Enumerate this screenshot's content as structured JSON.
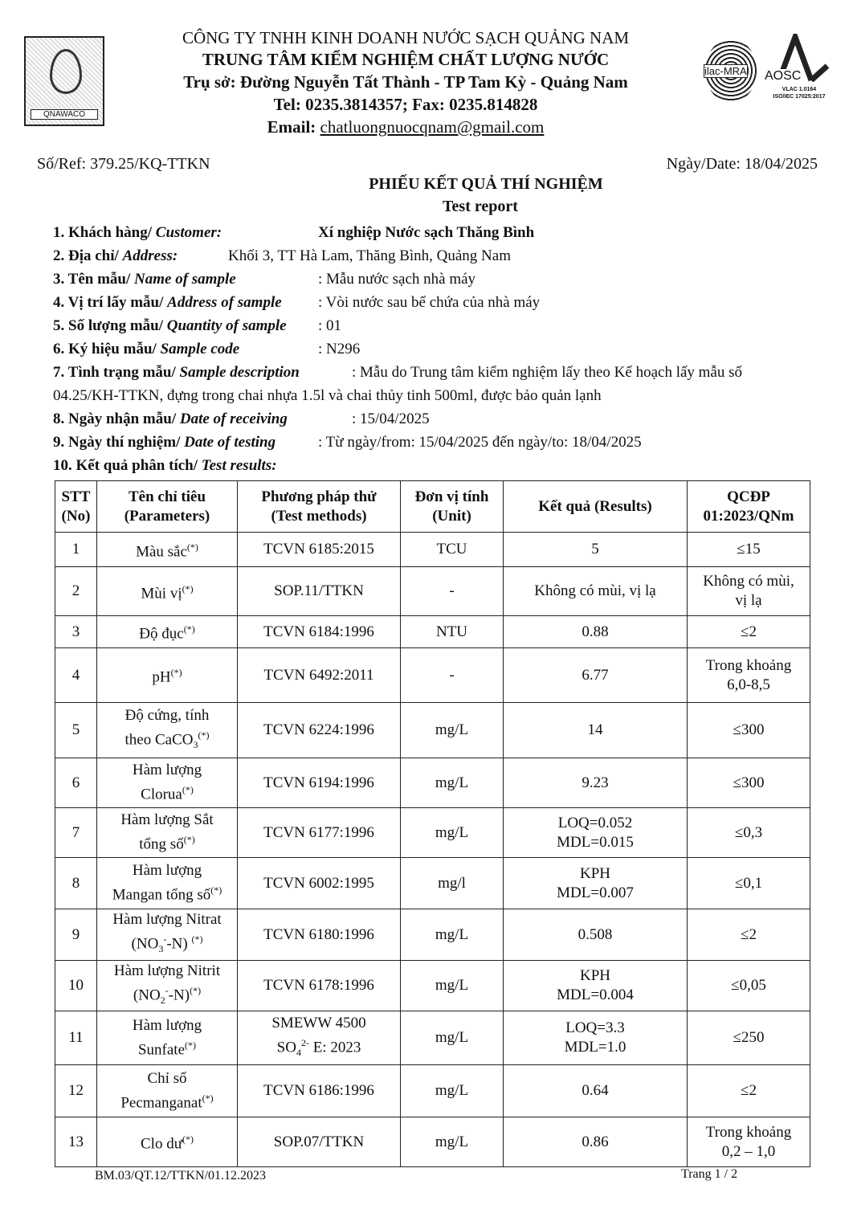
{
  "header": {
    "company": "CÔNG TY TNHH KINH DOANH NƯỚC SẠCH QUẢNG NAM",
    "center": "TRUNG TÂM KIỂM NGHIỆM CHẤT LƯỢNG NƯỚC",
    "address": "Trụ sở: Đường Nguyễn Tất Thành - TP Tam Kỳ -  Quảng Nam",
    "tel": "Tel: 0235.3814357; Fax: 0235.814828",
    "email_label": "Email: ",
    "email": "chatluongnuocqnam@gmail.com",
    "logo_text": "QNAWACO",
    "ilac_text": "ilac-MRA",
    "aosc_text": "AOSC",
    "aosc_sub1": "VLAC 1.0164",
    "aosc_sub2": "ISO/IEC 17025:2017"
  },
  "ref": "Số/Ref: 379.25/KQ-TTKN",
  "date": "Ngày/Date: 18/04/2025",
  "title": "PHIẾU KẾT QUẢ THÍ NGHIỆM",
  "subtitle": "Test report",
  "fields": [
    {
      "label": "1. Khách hàng/ ",
      "label_en": "Customer:",
      "value": "Xí nghiệp Nước sạch Thăng Bình"
    },
    {
      "label": "2. Địa chỉ/ ",
      "label_en": "Address:",
      "value": "Khối 3, TT Hà Lam, Thăng Bình, Quảng Nam"
    },
    {
      "label": "3. Tên mẫu/ ",
      "label_en": "Name of sample",
      "value": ": Mẫu nước sạch nhà máy"
    },
    {
      "label": "4. Vị trí lấy mẫu/ ",
      "label_en": "Address of sample",
      "value": ": Vòi nước sau bể chứa của nhà máy"
    },
    {
      "label": "5. Số lượng mẫu/ ",
      "label_en": "Quantity of sample",
      "value": ": 01"
    },
    {
      "label": "6. Ký hiệu mẫu/ ",
      "label_en": "Sample code",
      "value": ": N296"
    },
    {
      "label": "7. Tình trạng mẫu/ ",
      "label_en": "Sample description",
      "value": ": Mẫu do Trung tâm kiểm nghiệm lấy theo Kế hoạch lấy mẫu số"
    },
    {
      "label": "",
      "label_en": "",
      "value": "04.25/KH-TTKN, đựng trong chai nhựa 1.5l và chai thủy tinh 500ml, được bảo quản lạnh"
    },
    {
      "label": "8. Ngày nhận mẫu/ ",
      "label_en": "Date of receiving",
      "value": ": 15/04/2025"
    },
    {
      "label": "9. Ngày thí nghiệm/ ",
      "label_en": "Date of testing",
      "value": ": Từ ngày/from: 15/04/2025  đến ngày/to: 18/04/2025"
    },
    {
      "label": "10. Kết quả phân tích/ ",
      "label_en": "Test results:",
      "value": ""
    }
  ],
  "table": {
    "headers": [
      "STT\n(No)",
      "Tên chỉ tiêu\n(Parameters)",
      "Phương pháp thử\n(Test methods)",
      "Đơn vị tính\n(Unit)",
      "Kết quả (Results)",
      "QCĐP\n01:2023/QNm"
    ],
    "rows": [
      [
        [
          {
            "t": "1"
          }
        ],
        [
          {
            "t": "Màu sắc"
          },
          {
            "t": "(*)",
            "s": "sup"
          }
        ],
        [
          {
            "t": "TCVN 6185:2015"
          }
        ],
        [
          {
            "t": "TCU"
          }
        ],
        [
          {
            "t": "5"
          }
        ],
        [
          {
            "t": "≤15"
          }
        ]
      ],
      [
        [
          {
            "t": "2"
          }
        ],
        [
          {
            "t": "Mùi vị"
          },
          {
            "t": "(*)",
            "s": "sup"
          }
        ],
        [
          {
            "t": "SOP.11/TTKN"
          }
        ],
        [
          {
            "t": "-"
          }
        ],
        [
          {
            "t": "Không có mùi, vị lạ"
          }
        ],
        [
          {
            "t": "Không có mùi,\nvị lạ"
          }
        ]
      ],
      [
        [
          {
            "t": "3"
          }
        ],
        [
          {
            "t": "Độ đục"
          },
          {
            "t": "(*)",
            "s": "sup"
          }
        ],
        [
          {
            "t": "TCVN 6184:1996"
          }
        ],
        [
          {
            "t": "NTU"
          }
        ],
        [
          {
            "t": "0.88"
          }
        ],
        [
          {
            "t": "≤2"
          }
        ]
      ],
      [
        [
          {
            "t": "4"
          }
        ],
        [
          {
            "t": "pH"
          },
          {
            "t": "(*)",
            "s": "sup"
          }
        ],
        [
          {
            "t": "TCVN 6492:2011"
          }
        ],
        [
          {
            "t": "-"
          }
        ],
        [
          {
            "t": "6.77"
          }
        ],
        [
          {
            "t": "Trong khoảng\n6,0-8,5"
          }
        ]
      ],
      [
        [
          {
            "t": "5"
          }
        ],
        [
          {
            "t": "Độ cứng, tính\ntheo CaCO"
          },
          {
            "t": "3",
            "s": "sub"
          },
          {
            "t": "(*)",
            "s": "sup"
          }
        ],
        [
          {
            "t": "TCVN 6224:1996"
          }
        ],
        [
          {
            "t": "mg/L"
          }
        ],
        [
          {
            "t": "14"
          }
        ],
        [
          {
            "t": "≤300"
          }
        ]
      ],
      [
        [
          {
            "t": "6"
          }
        ],
        [
          {
            "t": "Hàm lượng\nClorua"
          },
          {
            "t": "(*)",
            "s": "sup"
          }
        ],
        [
          {
            "t": "TCVN 6194:1996"
          }
        ],
        [
          {
            "t": "mg/L"
          }
        ],
        [
          {
            "t": "9.23"
          }
        ],
        [
          {
            "t": "≤300"
          }
        ]
      ],
      [
        [
          {
            "t": "7"
          }
        ],
        [
          {
            "t": "Hàm lượng Sắt\ntổng số"
          },
          {
            "t": "(*)",
            "s": "sup"
          }
        ],
        [
          {
            "t": "TCVN 6177:1996"
          }
        ],
        [
          {
            "t": "mg/L"
          }
        ],
        [
          {
            "t": "LOQ=0.052\nMDL=0.015"
          }
        ],
        [
          {
            "t": "≤0,3"
          }
        ]
      ],
      [
        [
          {
            "t": "8"
          }
        ],
        [
          {
            "t": "Hàm lượng\nMangan tổng số"
          },
          {
            "t": "(*)",
            "s": "sup"
          }
        ],
        [
          {
            "t": "TCVN 6002:1995"
          }
        ],
        [
          {
            "t": "mg/l"
          }
        ],
        [
          {
            "t": "KPH\nMDL=0.007"
          }
        ],
        [
          {
            "t": "≤0,1"
          }
        ]
      ],
      [
        [
          {
            "t": "9"
          }
        ],
        [
          {
            "t": "Hàm lượng Nitrat\n(NO"
          },
          {
            "t": "3",
            "s": "sub"
          },
          {
            "t": "-",
            "s": "sup"
          },
          {
            "t": "-N) "
          },
          {
            "t": "(*)",
            "s": "sup"
          }
        ],
        [
          {
            "t": "TCVN 6180:1996"
          }
        ],
        [
          {
            "t": "mg/L"
          }
        ],
        [
          {
            "t": "0.508"
          }
        ],
        [
          {
            "t": "≤2"
          }
        ]
      ],
      [
        [
          {
            "t": "10"
          }
        ],
        [
          {
            "t": "Hàm lượng Nitrit\n(NO"
          },
          {
            "t": "2",
            "s": "sub"
          },
          {
            "t": "-",
            "s": "sup"
          },
          {
            "t": "-N)"
          },
          {
            "t": "(*)",
            "s": "sup"
          }
        ],
        [
          {
            "t": "TCVN 6178:1996"
          }
        ],
        [
          {
            "t": "mg/L"
          }
        ],
        [
          {
            "t": "KPH\nMDL=0.004"
          }
        ],
        [
          {
            "t": "≤0,05"
          }
        ]
      ],
      [
        [
          {
            "t": "11"
          }
        ],
        [
          {
            "t": "Hàm lượng\nSunfate"
          },
          {
            "t": "(*)",
            "s": "sup"
          }
        ],
        [
          {
            "t": "SMEWW 4500\nSO"
          },
          {
            "t": "4",
            "s": "sub"
          },
          {
            "t": "2-",
            "s": "sup"
          },
          {
            "t": " E: 2023"
          }
        ],
        [
          {
            "t": "mg/L"
          }
        ],
        [
          {
            "t": "LOQ=3.3\nMDL=1.0"
          }
        ],
        [
          {
            "t": "≤250"
          }
        ]
      ],
      [
        [
          {
            "t": "12"
          }
        ],
        [
          {
            "t": "Chỉ số\nPecmanganat"
          },
          {
            "t": "(*)",
            "s": "sup"
          }
        ],
        [
          {
            "t": "TCVN 6186:1996"
          }
        ],
        [
          {
            "t": "mg/L"
          }
        ],
        [
          {
            "t": "0.64"
          }
        ],
        [
          {
            "t": "≤2"
          }
        ]
      ],
      [
        [
          {
            "t": "13"
          }
        ],
        [
          {
            "t": "Clo dư"
          },
          {
            "t": "(*)",
            "s": "sup"
          }
        ],
        [
          {
            "t": "SOP.07/TTKN"
          }
        ],
        [
          {
            "t": "mg/L"
          }
        ],
        [
          {
            "t": "0.86"
          }
        ],
        [
          {
            "t": "Trong khoảng\n0,2 – 1,0"
          }
        ]
      ]
    ]
  },
  "footer": {
    "form_code": "BM.03/QT.12/TTKN/01.12.2023",
    "page": "Trang 1 / 2"
  }
}
